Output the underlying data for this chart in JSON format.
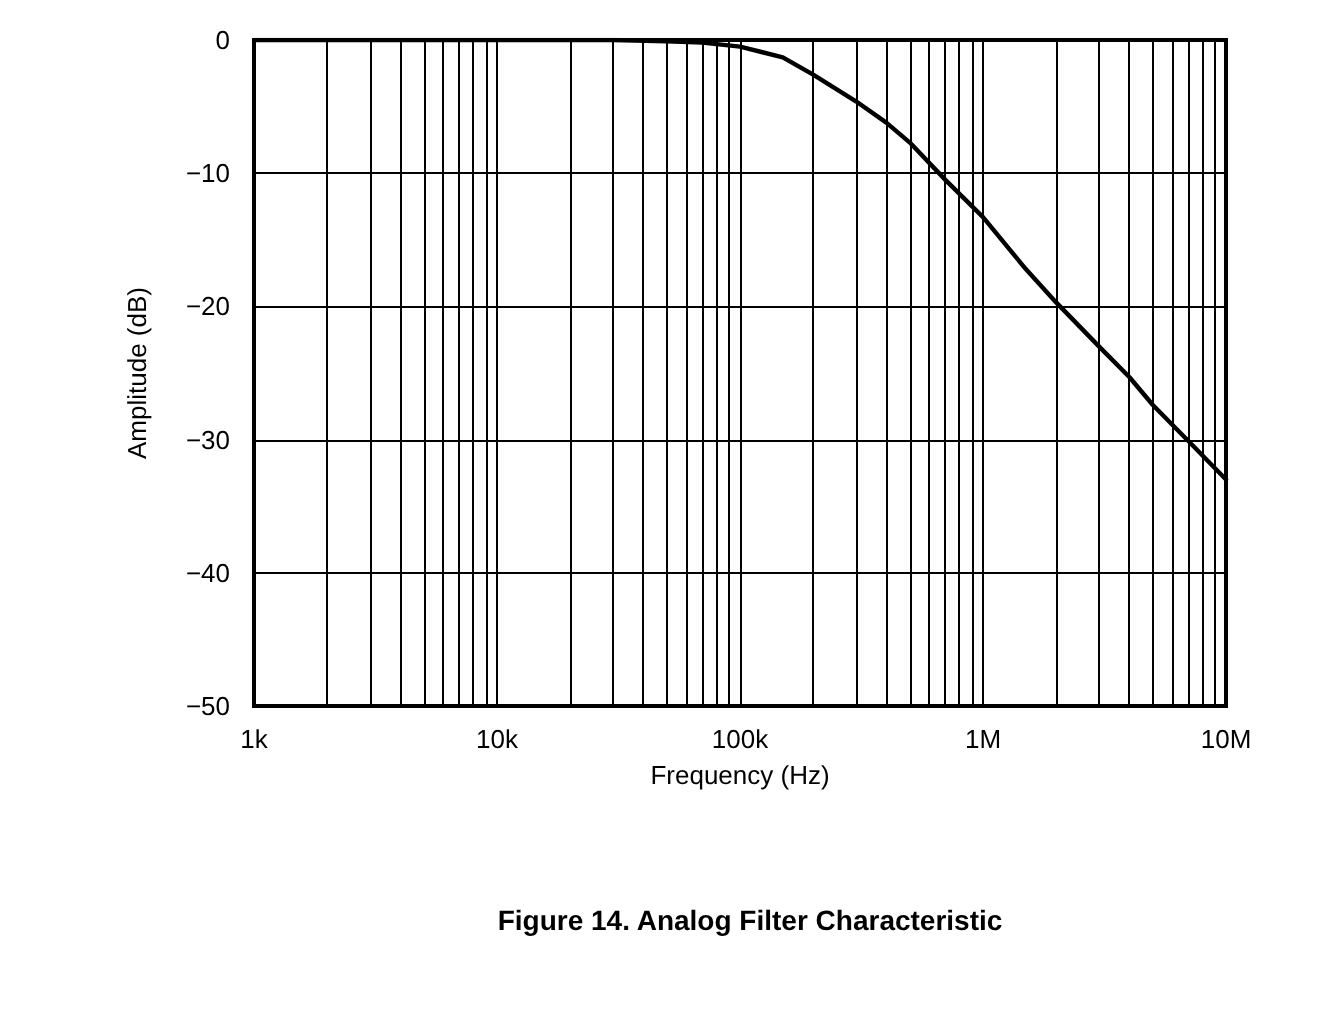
{
  "chart_data": {
    "type": "line",
    "title": "Figure 14. Analog Filter Characteristic",
    "xlabel": "Frequency (Hz)",
    "ylabel": "Amplitude (dB)",
    "log": "x",
    "grid": true,
    "marker": "none",
    "line_style": "solid",
    "x": [
      1000,
      3000,
      10000,
      30000,
      50000,
      70000,
      100000,
      150000,
      200000,
      300000,
      400000,
      500000,
      700000,
      1000000,
      1500000,
      2000000,
      3000000,
      4000000,
      5000000,
      7000000,
      10000000
    ],
    "series": [
      {
        "color": "#000000",
        "values": [
          0,
          0,
          0,
          0,
          -0.1,
          -0.2,
          -0.5,
          -1.3,
          -2.6,
          -4.6,
          -6.2,
          -7.7,
          -10.5,
          -13.3,
          -17.2,
          -19.7,
          -23,
          -25.3,
          -27.4,
          -30.1,
          -33
        ]
      }
    ],
    "xlim": [
      1000,
      10000000
    ],
    "xticks": [
      {
        "value": 1000,
        "label": "1k"
      },
      {
        "value": 2000,
        "label": null
      },
      {
        "value": 3000,
        "label": null
      },
      {
        "value": 4000,
        "label": null
      },
      {
        "value": 5000,
        "label": null
      },
      {
        "value": 6000,
        "label": null
      },
      {
        "value": 7000,
        "label": null
      },
      {
        "value": 8000,
        "label": null
      },
      {
        "value": 9000,
        "label": null
      },
      {
        "value": 10000,
        "label": "10k"
      },
      {
        "value": 20000,
        "label": null
      },
      {
        "value": 30000,
        "label": null
      },
      {
        "value": 40000,
        "label": null
      },
      {
        "value": 50000,
        "label": null
      },
      {
        "value": 60000,
        "label": null
      },
      {
        "value": 70000,
        "label": null
      },
      {
        "value": 80000,
        "label": null
      },
      {
        "value": 90000,
        "label": null
      },
      {
        "value": 100000,
        "label": "100k"
      },
      {
        "value": 200000,
        "label": null
      },
      {
        "value": 300000,
        "label": null
      },
      {
        "value": 400000,
        "label": null
      },
      {
        "value": 500000,
        "label": null
      },
      {
        "value": 600000,
        "label": null
      },
      {
        "value": 700000,
        "label": null
      },
      {
        "value": 800000,
        "label": null
      },
      {
        "value": 900000,
        "label": null
      },
      {
        "value": 1000000,
        "label": "1M"
      },
      {
        "value": 2000000,
        "label": null
      },
      {
        "value": 3000000,
        "label": null
      },
      {
        "value": 4000000,
        "label": null
      },
      {
        "value": 5000000,
        "label": null
      },
      {
        "value": 6000000,
        "label": null
      },
      {
        "value": 7000000,
        "label": null
      },
      {
        "value": 8000000,
        "label": null
      },
      {
        "value": 9000000,
        "label": null
      },
      {
        "value": 10000000,
        "label": "10M"
      }
    ],
    "ylim": [
      -50,
      0
    ],
    "yticks": [
      {
        "value": -50,
        "label": "−50"
      },
      {
        "value": -40,
        "label": "−40"
      },
      {
        "value": -30,
        "label": "−30"
      },
      {
        "value": -20,
        "label": "−20"
      },
      {
        "value": -10,
        "label": "−10"
      },
      {
        "value": 0,
        "label": "0"
      }
    ]
  }
}
